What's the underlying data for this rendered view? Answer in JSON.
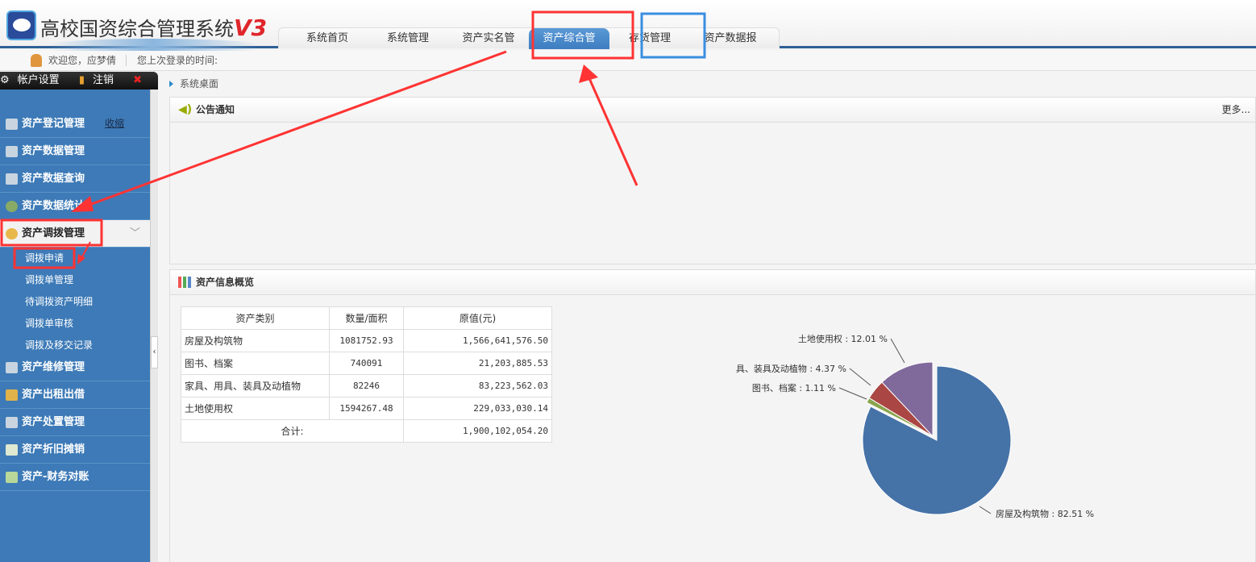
{
  "header": {
    "title": "高校国资综合管理系统",
    "version": "V3"
  },
  "tabs": [
    {
      "label": "系统首页"
    },
    {
      "label": "系统管理"
    },
    {
      "label": "资产实名管理"
    },
    {
      "label": "资产综合管理",
      "active": true
    },
    {
      "label": "存货管理"
    },
    {
      "label": "资产数据报送"
    }
  ],
  "welcome": {
    "greeting": "欢迎您，应梦倩",
    "last_login": "您上次登录的时间:"
  },
  "account": {
    "settings": "帐户设置",
    "logout": "注销",
    "exit": "退出"
  },
  "sidebar": {
    "collapse": "收缩",
    "items": [
      {
        "label": "资产登记管理",
        "icon": "register-icon"
      },
      {
        "label": "资产数据管理",
        "icon": "database-icon"
      },
      {
        "label": "资产数据查询",
        "icon": "search-icon"
      },
      {
        "label": "资产数据统计",
        "icon": "chart-icon"
      },
      {
        "label": "资产调拨管理",
        "icon": "users-icon",
        "open": true,
        "children": [
          "调拨申请",
          "调拨单管理",
          "待调拨资产明细",
          "调拨单审核",
          "调拨及移交记录"
        ]
      },
      {
        "label": "资产维修管理",
        "icon": "maintenance-icon"
      },
      {
        "label": "资产出租出借",
        "icon": "lease-icon"
      },
      {
        "label": "资产处置管理",
        "icon": "trash-icon"
      },
      {
        "label": "资产折旧摊销",
        "icon": "grid-icon"
      },
      {
        "label": "资产-财务对账",
        "icon": "ledger-icon"
      }
    ]
  },
  "breadcrumb": "系统桌面",
  "notice": {
    "title": "公告通知",
    "more": "更多..."
  },
  "overview": {
    "title": "资产信息概览",
    "headers": [
      "资产类别",
      "数量/面积",
      "原值(元)"
    ],
    "rows": [
      [
        "房屋及构筑物",
        "1081752.93",
        "1,566,641,576.50"
      ],
      [
        "图书、档案",
        "740091",
        "21,203,885.53"
      ],
      [
        "家具、用具、装具及动植物",
        "82246",
        "83,223,562.03"
      ],
      [
        "土地使用权",
        "1594267.48",
        "229,033,030.14"
      ]
    ],
    "total_label": "合计:",
    "total": "1,900,102,054.20"
  },
  "chart_data": {
    "type": "pie",
    "slices": [
      {
        "label": "房屋及构筑物 : 82.51 %",
        "value": 82.51,
        "color": "#4572a7"
      },
      {
        "label": "图书、档案 : 1.11 %",
        "value": 1.11,
        "color": "#89a54e"
      },
      {
        "label": "具、装具及动植物 : 4.37 %",
        "value": 4.37,
        "color": "#aa4643"
      },
      {
        "label": "土地使用权 : 12.01 %",
        "value": 12.01,
        "color": "#80699b"
      }
    ]
  }
}
